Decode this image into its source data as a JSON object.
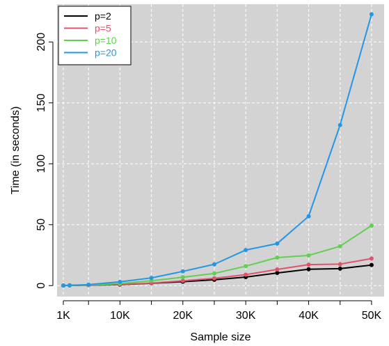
{
  "chart_data": {
    "type": "line",
    "title": "",
    "xlabel": "Sample size",
    "ylabel": "Time (in seconds)",
    "x": [
      1000,
      2000,
      5000,
      10000,
      15000,
      20000,
      25000,
      30000,
      35000,
      40000,
      45000,
      50000
    ],
    "xticks": [
      {
        "value": 1000,
        "label": "1K"
      },
      {
        "value": 5000,
        "label": ""
      },
      {
        "value": 10000,
        "label": "10K"
      },
      {
        "value": 15000,
        "label": ""
      },
      {
        "value": 20000,
        "label": "20K"
      },
      {
        "value": 25000,
        "label": ""
      },
      {
        "value": 30000,
        "label": "30K"
      },
      {
        "value": 35000,
        "label": ""
      },
      {
        "value": 40000,
        "label": "40K"
      },
      {
        "value": 45000,
        "label": ""
      },
      {
        "value": 50000,
        "label": "50K"
      }
    ],
    "yticks": [
      0,
      50,
      100,
      150,
      200
    ],
    "xlim": [
      0,
      52000
    ],
    "ylim": [
      -9,
      231
    ],
    "background": "#d3d3d3",
    "grid": true,
    "grid_color": "#ffffff",
    "legend_position": "top-left",
    "series": [
      {
        "name": "p=2",
        "color": "#000000",
        "values": [
          0.1,
          0.2,
          0.4,
          0.8,
          1.9,
          3.2,
          4.8,
          7.0,
          10.4,
          13.4,
          13.9,
          16.9
        ]
      },
      {
        "name": "p=5",
        "color": "#df536b",
        "values": [
          0.1,
          0.2,
          0.5,
          1.0,
          2.1,
          3.9,
          6.0,
          9.0,
          13.3,
          17.2,
          17.6,
          22.2
        ]
      },
      {
        "name": "p=10",
        "color": "#61d04f",
        "values": [
          0.1,
          0.2,
          0.6,
          1.7,
          4.0,
          6.9,
          10.0,
          16.0,
          23.0,
          24.8,
          32.3,
          49.3
        ]
      },
      {
        "name": "p=20",
        "color": "#2297e6",
        "values": [
          0.1,
          0.2,
          0.8,
          3.1,
          6.3,
          11.7,
          17.5,
          29.2,
          34.5,
          56.9,
          131.8,
          222.7
        ]
      }
    ]
  }
}
